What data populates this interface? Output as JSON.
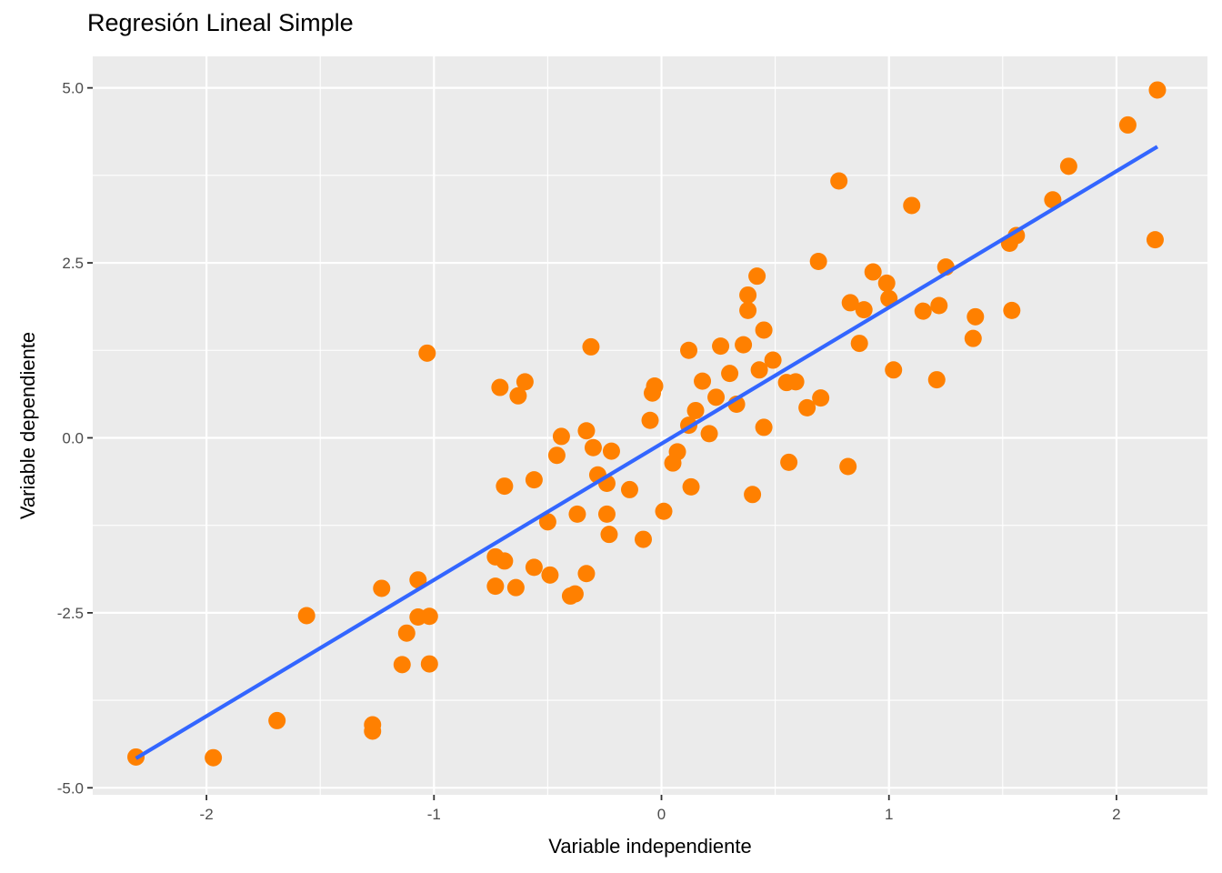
{
  "chart_data": {
    "type": "scatter",
    "title": "Regresión Lineal Simple",
    "xlabel": "Variable independiente",
    "ylabel": "Variable dependiente",
    "xlim": [
      -2.5,
      2.4
    ],
    "ylim": [
      -5.1,
      5.45
    ],
    "x_ticks": [
      -2,
      -1,
      0,
      1,
      2
    ],
    "x_tick_labels": [
      "-2",
      "-1",
      "0",
      "1",
      "2"
    ],
    "y_ticks": [
      -5,
      -2.5,
      0,
      2.5,
      5
    ],
    "y_tick_labels": [
      "-5.0",
      "-2.5",
      "0.0",
      "2.5",
      "5.0"
    ],
    "grid": true,
    "colors": {
      "panel": "#ebebeb",
      "grid": "#ffffff",
      "points": "#ff8000",
      "line": "#3366ff"
    },
    "series": [
      {
        "type": "scatter",
        "x": [
          2.18,
          2.05,
          2.17,
          1.79,
          1.72,
          1.56,
          1.53,
          1.54,
          1.38,
          1.37,
          1.25,
          1.22,
          1.21,
          1.15,
          1.1,
          0.78,
          0.69,
          0.93,
          0.99,
          1.0,
          0.83,
          0.89,
          0.87,
          1.02,
          0.82,
          0.7,
          0.64,
          0.59,
          0.55,
          0.56,
          0.49,
          0.45,
          0.43,
          0.45,
          0.42,
          0.38,
          0.38,
          0.36,
          0.3,
          0.33,
          0.4,
          0.26,
          0.24,
          0.18,
          0.12,
          0.15,
          0.12,
          0.21,
          0.13,
          0.07,
          0.05,
          -0.03,
          -0.04,
          -0.05,
          0.01,
          -0.08,
          -0.14,
          -0.22,
          -0.24,
          -0.24,
          -0.23,
          -0.28,
          -0.3,
          -0.31,
          -0.33,
          -0.33,
          -0.37,
          -0.38,
          -0.4,
          -0.44,
          -0.46,
          -0.49,
          -0.5,
          -0.56,
          -0.56,
          -0.6,
          -0.63,
          -0.64,
          -0.69,
          -0.69,
          -0.71,
          -0.73,
          -0.73,
          -1.03,
          -1.02,
          -1.02,
          -1.07,
          -1.07,
          -1.12,
          -1.14,
          -1.23,
          -1.27,
          -1.27,
          -1.56,
          -1.69,
          -1.97,
          -2.31
        ],
        "y": [
          4.97,
          4.47,
          2.83,
          3.88,
          3.4,
          2.89,
          2.78,
          1.82,
          1.73,
          1.42,
          2.44,
          1.89,
          0.83,
          1.81,
          3.32,
          3.67,
          2.52,
          2.37,
          2.21,
          1.99,
          1.93,
          1.83,
          1.35,
          0.97,
          -0.41,
          0.57,
          0.43,
          0.8,
          0.79,
          -0.35,
          1.11,
          1.54,
          0.97,
          0.15,
          2.31,
          2.04,
          1.82,
          1.33,
          0.92,
          0.48,
          -0.81,
          1.31,
          0.58,
          0.81,
          1.25,
          0.39,
          0.18,
          0.06,
          -0.7,
          -0.2,
          -0.36,
          0.74,
          0.64,
          0.25,
          -1.05,
          -1.45,
          -0.74,
          -0.19,
          -0.65,
          -1.09,
          -1.38,
          -0.53,
          -0.14,
          1.3,
          0.1,
          -1.94,
          -1.09,
          -2.23,
          -2.26,
          0.02,
          -0.25,
          -1.96,
          -1.2,
          -0.6,
          -1.85,
          0.8,
          0.6,
          -2.14,
          -0.69,
          -1.76,
          0.72,
          -1.7,
          -2.12,
          1.21,
          -3.23,
          -2.55,
          -2.56,
          -2.03,
          -2.79,
          -3.24,
          -2.15,
          -4.1,
          -4.19,
          -2.54,
          -4.04,
          -4.57,
          -4.56
        ]
      },
      {
        "type": "line",
        "x": [
          -2.31,
          2.18
        ],
        "y": [
          -4.58,
          4.16
        ]
      }
    ]
  }
}
